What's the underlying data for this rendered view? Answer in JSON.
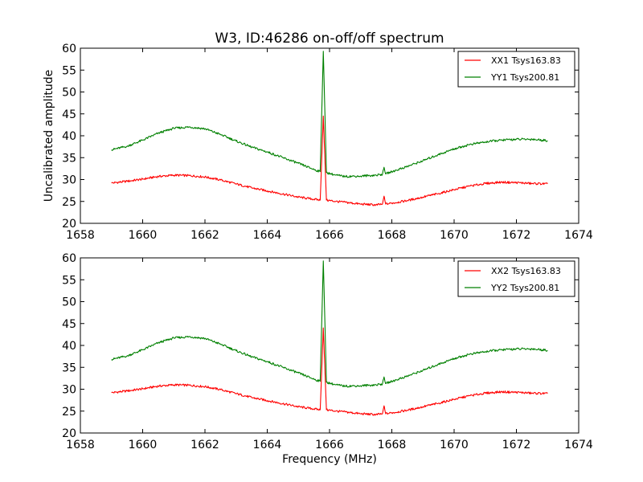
{
  "chart_data": [
    {
      "type": "line",
      "title": "W3, ID:46286 on-off/off spectrum",
      "xlabel": "",
      "ylabel": "Uncalibrated amplitude",
      "xlim": [
        1658,
        1674
      ],
      "ylim": [
        20,
        60
      ],
      "xticks": [
        "1658",
        "1660",
        "1662",
        "1664",
        "1666",
        "1668",
        "1670",
        "1672",
        "1674"
      ],
      "yticks": [
        "20",
        "25",
        "30",
        "35",
        "40",
        "45",
        "50",
        "55",
        "60"
      ],
      "legend_position": "top-right",
      "series": [
        {
          "name": "XX1 Tsys163.83",
          "color": "#ff0000",
          "x": [
            1659.0,
            1659.5,
            1660.0,
            1660.5,
            1661.0,
            1661.5,
            1662.0,
            1662.5,
            1663.0,
            1663.5,
            1664.0,
            1664.5,
            1665.0,
            1665.5,
            1665.7,
            1665.8,
            1665.9,
            1666.2,
            1666.5,
            1667.0,
            1667.5,
            1667.7,
            1667.75,
            1667.8,
            1668.0,
            1668.5,
            1669.0,
            1669.5,
            1670.0,
            1670.5,
            1671.0,
            1671.5,
            1672.0,
            1672.5,
            1673.0
          ],
          "y": [
            29.2,
            29.6,
            30.1,
            30.7,
            31.0,
            30.9,
            30.6,
            29.9,
            29.0,
            28.1,
            27.4,
            26.7,
            26.0,
            25.5,
            25.3,
            44.5,
            25.3,
            25.0,
            24.8,
            24.4,
            24.2,
            24.4,
            26.2,
            24.4,
            24.6,
            25.2,
            26.0,
            26.8,
            27.7,
            28.5,
            29.1,
            29.4,
            29.3,
            29.1,
            29.0
          ]
        },
        {
          "name": "YY1 Tsys200.81",
          "color": "#008000",
          "x": [
            1659.0,
            1659.5,
            1660.0,
            1660.5,
            1661.0,
            1661.5,
            1662.0,
            1662.5,
            1663.0,
            1663.5,
            1664.0,
            1664.5,
            1665.0,
            1665.5,
            1665.7,
            1665.8,
            1665.9,
            1666.2,
            1666.5,
            1667.0,
            1667.5,
            1667.7,
            1667.75,
            1667.8,
            1668.0,
            1668.5,
            1669.0,
            1669.5,
            1670.0,
            1670.5,
            1671.0,
            1671.5,
            1672.0,
            1672.5,
            1673.0
          ],
          "y": [
            36.8,
            37.6,
            39.0,
            40.6,
            41.7,
            42.0,
            41.6,
            40.3,
            38.8,
            37.4,
            36.3,
            35.0,
            33.7,
            32.3,
            31.8,
            59.3,
            31.6,
            31.0,
            30.7,
            30.8,
            31.0,
            31.2,
            32.8,
            31.3,
            31.8,
            33.0,
            34.3,
            35.7,
            37.0,
            38.0,
            38.6,
            39.0,
            39.2,
            39.2,
            38.9
          ]
        }
      ]
    },
    {
      "type": "line",
      "title": "",
      "xlabel": "Frequency (MHz)",
      "ylabel": "",
      "xlim": [
        1658,
        1674
      ],
      "ylim": [
        20,
        60
      ],
      "xticks": [
        "1658",
        "1660",
        "1662",
        "1664",
        "1666",
        "1668",
        "1670",
        "1672",
        "1674"
      ],
      "yticks": [
        "20",
        "25",
        "30",
        "35",
        "40",
        "45",
        "50",
        "55",
        "60"
      ],
      "legend_position": "top-right",
      "series": [
        {
          "name": "XX2 Tsys163.83",
          "color": "#ff0000",
          "x": [
            1659.0,
            1659.5,
            1660.0,
            1660.5,
            1661.0,
            1661.5,
            1662.0,
            1662.5,
            1663.0,
            1663.5,
            1664.0,
            1664.5,
            1665.0,
            1665.5,
            1665.7,
            1665.8,
            1665.9,
            1666.2,
            1666.5,
            1667.0,
            1667.5,
            1667.7,
            1667.75,
            1667.8,
            1668.0,
            1668.5,
            1669.0,
            1669.5,
            1670.0,
            1670.5,
            1671.0,
            1671.5,
            1672.0,
            1672.5,
            1673.0
          ],
          "y": [
            29.2,
            29.6,
            30.1,
            30.7,
            31.0,
            30.9,
            30.6,
            29.9,
            29.0,
            28.1,
            27.4,
            26.7,
            26.0,
            25.5,
            25.3,
            44.0,
            25.3,
            25.0,
            24.8,
            24.4,
            24.2,
            24.4,
            26.2,
            24.4,
            24.6,
            25.2,
            26.0,
            26.8,
            27.7,
            28.5,
            29.1,
            29.4,
            29.3,
            29.1,
            29.0
          ]
        },
        {
          "name": "YY2 Tsys200.81",
          "color": "#008000",
          "x": [
            1659.0,
            1659.5,
            1660.0,
            1660.5,
            1661.0,
            1661.5,
            1662.0,
            1662.5,
            1663.0,
            1663.5,
            1664.0,
            1664.5,
            1665.0,
            1665.5,
            1665.7,
            1665.8,
            1665.9,
            1666.2,
            1666.5,
            1667.0,
            1667.5,
            1667.7,
            1667.75,
            1667.8,
            1668.0,
            1668.5,
            1669.0,
            1669.5,
            1670.0,
            1670.5,
            1671.0,
            1671.5,
            1672.0,
            1672.5,
            1673.0
          ],
          "y": [
            36.8,
            37.6,
            39.0,
            40.6,
            41.7,
            42.0,
            41.6,
            40.3,
            38.8,
            37.4,
            36.3,
            35.0,
            33.7,
            32.3,
            31.8,
            59.3,
            31.6,
            31.0,
            30.7,
            30.8,
            31.0,
            31.2,
            32.8,
            31.3,
            31.8,
            33.0,
            34.3,
            35.7,
            37.0,
            38.0,
            38.6,
            39.0,
            39.2,
            39.2,
            38.9
          ]
        }
      ]
    }
  ]
}
